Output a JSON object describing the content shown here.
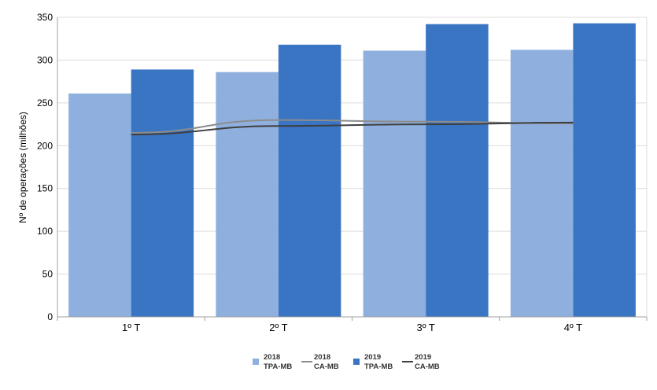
{
  "chart_data": {
    "type": "bar",
    "categories": [
      "1º T",
      "2º T",
      "3º T",
      "4º T"
    ],
    "ylabel": "Nº de operações (milhões)",
    "ylim": [
      0,
      350
    ],
    "yticks": [
      0,
      50,
      100,
      150,
      200,
      250,
      300,
      350
    ],
    "grid": true,
    "legend_position": "bottom",
    "series": [
      {
        "name_line1": "2018",
        "name_line2": "TPA-MB",
        "kind": "bar",
        "color": "#8fb0de",
        "values": [
          261,
          286,
          311,
          312
        ]
      },
      {
        "name_line1": "2018",
        "name_line2": "CA-MB",
        "kind": "line",
        "color": "#8c8c8c",
        "values": [
          215,
          230,
          228,
          226
        ]
      },
      {
        "name_line1": "2019",
        "name_line2": "TPA-MB",
        "kind": "bar",
        "color": "#3a75c4",
        "values": [
          289,
          318,
          342,
          343
        ]
      },
      {
        "name_line1": "2019",
        "name_line2": "CA-MB",
        "kind": "line",
        "color": "#3f3f3f",
        "values": [
          213,
          223,
          225,
          227
        ]
      }
    ]
  }
}
